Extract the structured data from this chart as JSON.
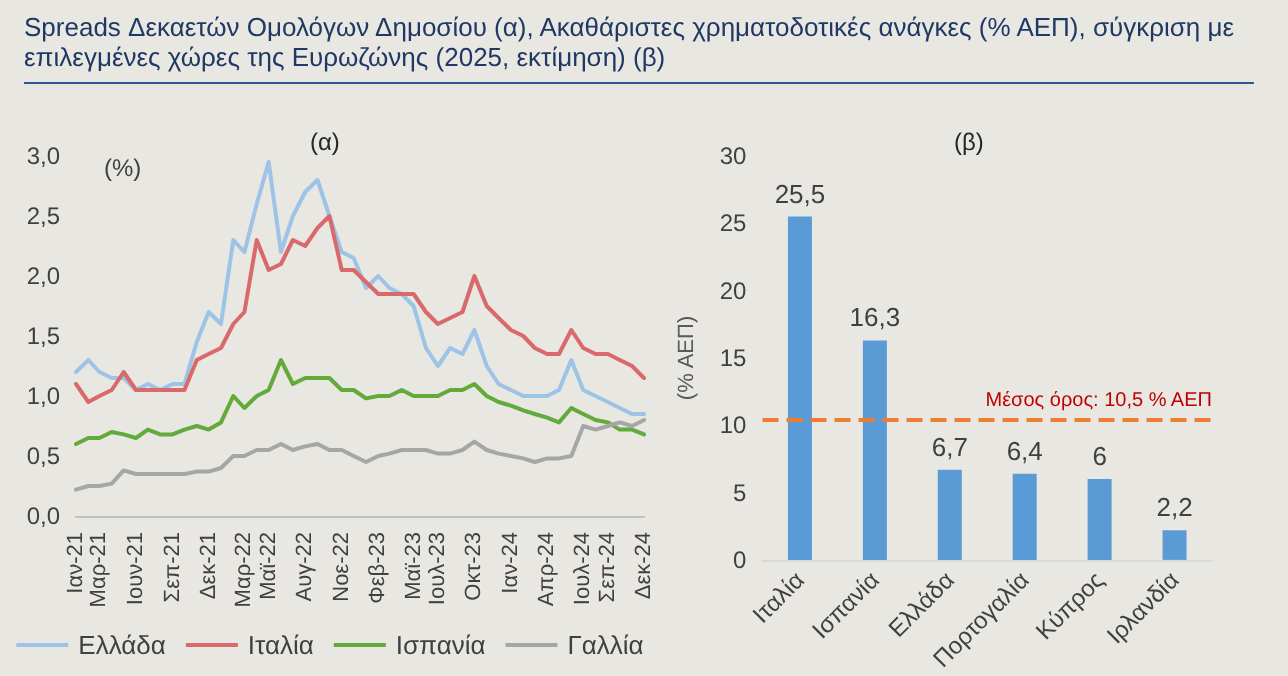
{
  "chart_data": [
    {
      "type": "line",
      "title": "Spreads Δεκαετών Ομολόγων Δημοσίου (α), Ακαθάριστες χρηματοδοτικές ανάγκες (% ΑΕΠ), σύγκριση με επιλεγμένες χώρες της Ευρωζώνης (2025, εκτίμηση) (β)",
      "subtitle": "(α)",
      "ylabel": "(%)",
      "x": [
        "2021-01",
        "2021-02",
        "2021-03",
        "2021-04",
        "2021-05",
        "2021-06",
        "2021-07",
        "2021-08",
        "2021-09",
        "2021-10",
        "2021-11",
        "2021-12",
        "2022-01",
        "2022-02",
        "2022-03",
        "2022-04",
        "2022-05",
        "2022-06",
        "2022-07",
        "2022-08",
        "2022-09",
        "2022-10",
        "2022-11",
        "2022-12",
        "2023-01",
        "2023-02",
        "2023-03",
        "2023-04",
        "2023-05",
        "2023-06",
        "2023-07",
        "2023-08",
        "2023-09",
        "2023-10",
        "2023-11",
        "2023-12",
        "2024-01",
        "2024-02",
        "2024-03",
        "2024-04",
        "2024-05",
        "2024-06",
        "2024-07",
        "2024-08",
        "2024-09",
        "2024-10",
        "2024-11",
        "2024-12"
      ],
      "series": [
        {
          "name": "Ελλάδα",
          "color": "#9dc3e6",
          "values": [
            1.2,
            1.3,
            1.2,
            1.15,
            1.15,
            1.05,
            1.1,
            1.05,
            1.1,
            1.1,
            1.45,
            1.7,
            1.6,
            2.3,
            2.2,
            2.6,
            2.95,
            2.2,
            2.5,
            2.7,
            2.8,
            2.5,
            2.2,
            2.15,
            1.9,
            2.0,
            1.9,
            1.85,
            1.75,
            1.4,
            1.25,
            1.4,
            1.35,
            1.55,
            1.25,
            1.1,
            1.05,
            1.0,
            1.0,
            1.0,
            1.05,
            1.3,
            1.05,
            1.0,
            0.95,
            0.9,
            0.85,
            0.85
          ]
        },
        {
          "name": "Ιταλία",
          "color": "#d9696b",
          "values": [
            1.1,
            0.95,
            1.0,
            1.05,
            1.2,
            1.05,
            1.05,
            1.05,
            1.05,
            1.05,
            1.3,
            1.35,
            1.4,
            1.6,
            1.7,
            2.3,
            2.05,
            2.1,
            2.3,
            2.25,
            2.4,
            2.5,
            2.05,
            2.05,
            1.95,
            1.85,
            1.85,
            1.85,
            1.85,
            1.7,
            1.6,
            1.65,
            1.7,
            2.0,
            1.75,
            1.65,
            1.55,
            1.5,
            1.4,
            1.35,
            1.35,
            1.55,
            1.4,
            1.35,
            1.35,
            1.3,
            1.25,
            1.15
          ]
        },
        {
          "name": "Ισπανία",
          "color": "#62aa3a",
          "values": [
            0.6,
            0.65,
            0.65,
            0.7,
            0.68,
            0.65,
            0.72,
            0.68,
            0.68,
            0.72,
            0.75,
            0.72,
            0.78,
            1.0,
            0.9,
            1.0,
            1.05,
            1.3,
            1.1,
            1.15,
            1.15,
            1.15,
            1.05,
            1.05,
            0.98,
            1.0,
            1.0,
            1.05,
            1.0,
            1.0,
            1.0,
            1.05,
            1.05,
            1.1,
            1.0,
            0.95,
            0.92,
            0.88,
            0.85,
            0.82,
            0.78,
            0.9,
            0.85,
            0.8,
            0.78,
            0.72,
            0.72,
            0.68
          ]
        },
        {
          "name": "Γαλλία",
          "color": "#a6a6a6",
          "values": [
            0.22,
            0.25,
            0.25,
            0.27,
            0.38,
            0.35,
            0.35,
            0.35,
            0.35,
            0.35,
            0.37,
            0.37,
            0.4,
            0.5,
            0.5,
            0.55,
            0.55,
            0.6,
            0.55,
            0.58,
            0.6,
            0.55,
            0.55,
            0.5,
            0.45,
            0.5,
            0.52,
            0.55,
            0.55,
            0.55,
            0.52,
            0.52,
            0.55,
            0.62,
            0.55,
            0.52,
            0.5,
            0.48,
            0.45,
            0.48,
            0.48,
            0.5,
            0.75,
            0.72,
            0.75,
            0.78,
            0.75,
            0.8
          ]
        }
      ],
      "xlim": [
        "2021-01",
        "2024-12"
      ],
      "xticks": [
        {
          "value": "2021-01",
          "label": "Ιαν-21"
        },
        {
          "value": "2021-03",
          "label": "Μαρ-21"
        },
        {
          "value": "2021-06",
          "label": "Ιουν-21"
        },
        {
          "value": "2021-09",
          "label": "Σεπ-21"
        },
        {
          "value": "2021-12",
          "label": "Δεκ-21"
        },
        {
          "value": "2022-03",
          "label": "Μαρ-22"
        },
        {
          "value": "2022-05",
          "label": "Μαϊ-22"
        },
        {
          "value": "2022-08",
          "label": "Αυγ-22"
        },
        {
          "value": "2022-11",
          "label": "Νοε-22"
        },
        {
          "value": "2023-02",
          "label": "Φεβ-23"
        },
        {
          "value": "2023-05",
          "label": "Μαϊ-23"
        },
        {
          "value": "2023-07",
          "label": "Ιουλ-23"
        },
        {
          "value": "2023-10",
          "label": "Οκτ-23"
        },
        {
          "value": "2024-01",
          "label": "Ιαν-24"
        },
        {
          "value": "2024-04",
          "label": "Απρ-24"
        },
        {
          "value": "2024-07",
          "label": "Ιουλ-24"
        },
        {
          "value": "2024-09",
          "label": "Σεπ-24"
        },
        {
          "value": "2024-12",
          "label": "Δεκ-24"
        }
      ],
      "ylim": [
        0,
        3
      ],
      "yticks": [
        {
          "value": 0,
          "label": "0,0"
        },
        {
          "value": 0.5,
          "label": "0,5"
        },
        {
          "value": 1,
          "label": "1,0"
        },
        {
          "value": 1.5,
          "label": "1,5"
        },
        {
          "value": 2,
          "label": "2,0"
        },
        {
          "value": 2.5,
          "label": "2,5"
        },
        {
          "value": 3,
          "label": "3,0"
        }
      ],
      "grid": false,
      "legend": "bottom",
      "marker": "none",
      "line_style": "solid"
    },
    {
      "type": "bar",
      "subtitle": "(β)",
      "ylabel": "(% ΑΕΠ)",
      "categories": [
        "Ιταλία",
        "Ισπανία",
        "Ελλάδα",
        "Πορτογαλία",
        "Κύπρος",
        "Ιρλανδία"
      ],
      "values": [
        25.5,
        16.3,
        6.7,
        6.4,
        6,
        2.2
      ],
      "color": "#5b9bd5",
      "value_labels": [
        "25,5",
        "16,3",
        "6,7",
        "6,4",
        "6",
        "2,2"
      ],
      "ylim": [
        0,
        30
      ],
      "yticks": [
        0,
        5,
        10,
        15,
        20,
        25,
        30
      ],
      "grid": false,
      "legend": false,
      "ref_lines": [
        {
          "axis": "y",
          "value": 10.5,
          "label": "Μέσος όρος: 10,5 % ΑΕΠ",
          "color": "#ed7d31",
          "line_style": "dashed"
        }
      ]
    }
  ]
}
